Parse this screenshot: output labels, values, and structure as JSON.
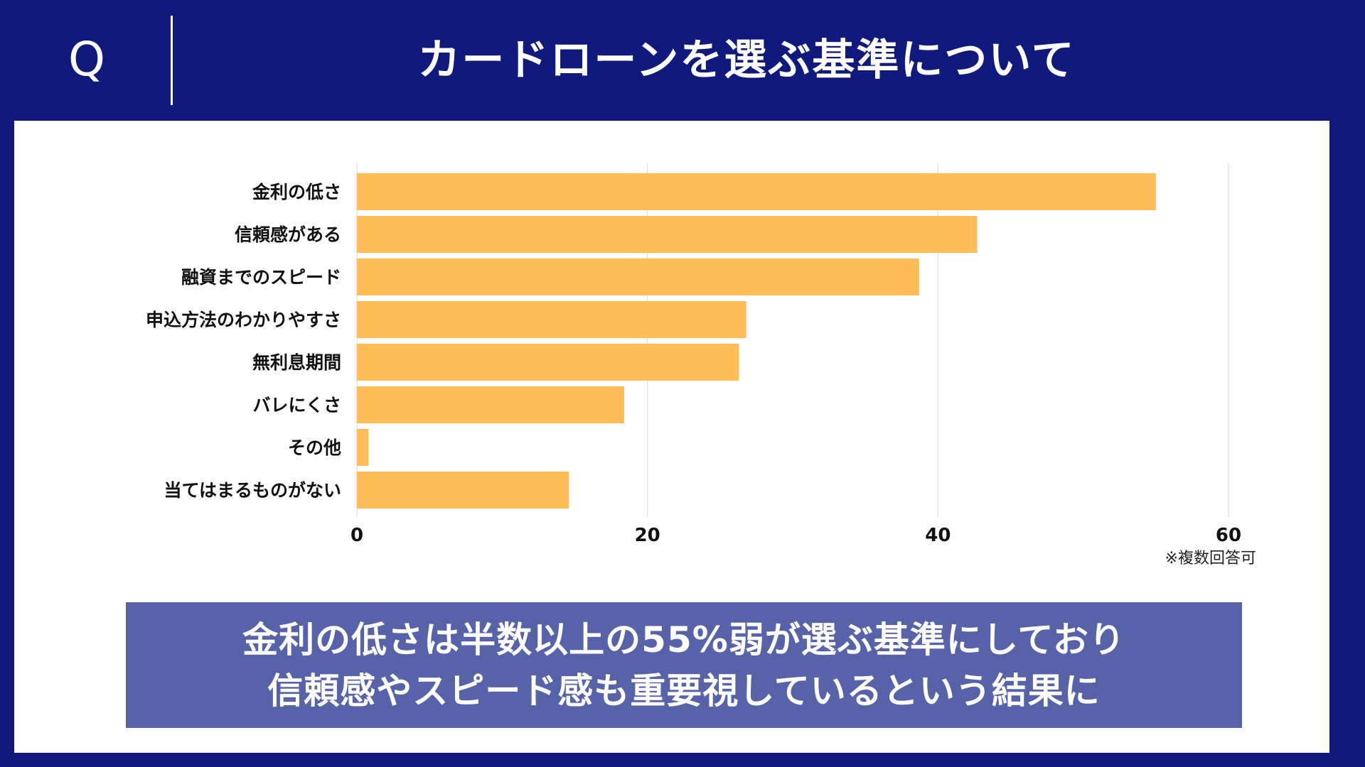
{
  "header": {
    "q_label": "Q",
    "title": "カードローンを選ぶ基準について"
  },
  "chart_data": {
    "type": "bar",
    "orientation": "horizontal",
    "categories": [
      "金利の低さ",
      "信頼感がある",
      "融資までのスピード",
      "申込方法のわかりやすさ",
      "無利息期間",
      "バレにくさ",
      "その他",
      "当てはまるものがない"
    ],
    "values": [
      55,
      42.7,
      38.7,
      26.8,
      26.3,
      18.4,
      0.8,
      14.6
    ],
    "xlim": [
      0,
      60
    ],
    "xticks": [
      0,
      20,
      40,
      60
    ],
    "grid": true,
    "bar_color": "#ffbd59",
    "note": "※複数回答可"
  },
  "summary": {
    "line1": "金利の低さは半数以上の55%弱が選ぶ基準にしており",
    "line2": "信頼感やスピード感も重要視しているという結果に"
  },
  "colors": {
    "background": "#0f1a7c",
    "panel": "#ffffff",
    "summary_box": "#5763a8"
  }
}
